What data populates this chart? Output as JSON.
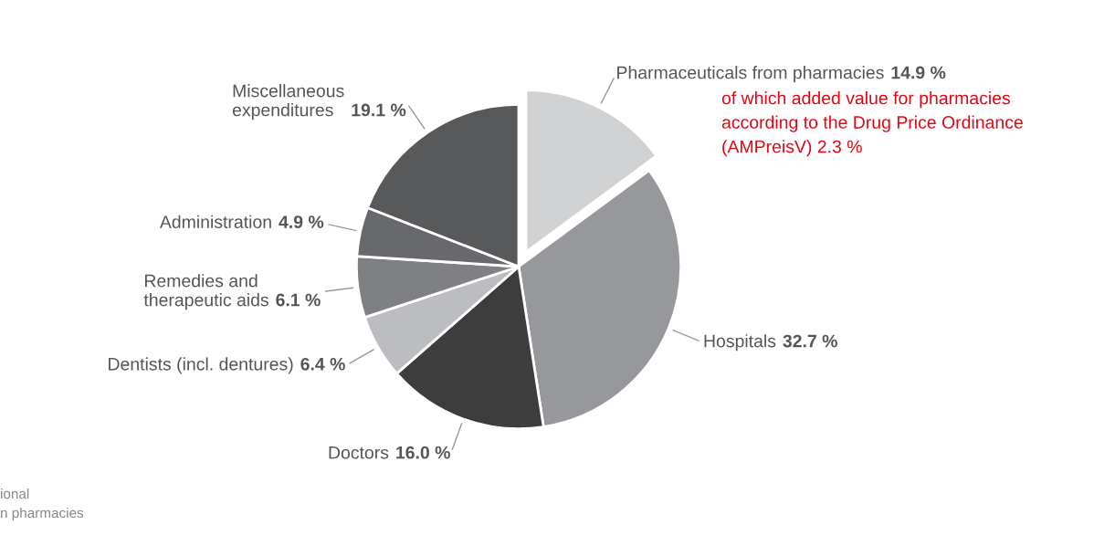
{
  "chart_data": {
    "type": "pie",
    "categories": [
      "Pharmaceuticals from pharmacies",
      "Hospitals",
      "Doctors",
      "Dentists (incl. dentures)",
      "Remedies and\ntherapeutic aids",
      "Administration",
      "Miscellaneous\nexpenditures"
    ],
    "values": [
      14.9,
      32.7,
      16.0,
      6.4,
      6.1,
      4.9,
      19.1
    ],
    "value_labels": [
      "14.9 %",
      "32.7 %",
      "16.0 %",
      "6.4 %",
      "6.1 %",
      "4.9 %",
      "19.1 %"
    ],
    "colors": [
      "#d1d2d4",
      "#97989b",
      "#3d3d3e",
      "#bcbdc0",
      "#7f8083",
      "#68696c",
      "#58595b"
    ],
    "annotations": [
      "of which added value for pharmacies\naccording to the Drug Price Ordinance\n(AMPreisV) 2.3 %",
      "ional\nn pharmacies"
    ],
    "legend": false
  }
}
